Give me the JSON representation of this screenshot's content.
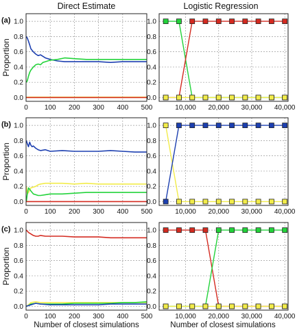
{
  "chart_data": {
    "type": "line",
    "title_left": "Direct Estimate",
    "title_right": "Logistic Regression",
    "ylabel": "Proportion",
    "xlabel_left": "Number of closest simulations",
    "xlabel_right": "Number of closest simulations",
    "colors": {
      "red": "#d42a20",
      "green": "#22d33a",
      "blue": "#1c3fb0",
      "yellow": "#f2ec4a"
    },
    "left_x_ticks": [
      "0",
      "100",
      "200",
      "300",
      "400",
      "500"
    ],
    "left_x_range": [
      0,
      500
    ],
    "right_x_ticks": [
      "10,000",
      "20,000",
      "30,000",
      "40,000"
    ],
    "right_x_range": [
      2000,
      41000
    ],
    "right_x_tick_values": [
      10000,
      20000,
      30000,
      40000
    ],
    "right_x_points": [
      4000,
      8000,
      12000,
      16000,
      20000,
      24000,
      28000,
      32000,
      36000,
      40000
    ],
    "panels": [
      {
        "label": "(a)",
        "y_ticks": [
          "0.0",
          "0.2",
          "0.4",
          "0.6",
          "0.8",
          "1.0"
        ],
        "y_range": [
          -0.05,
          1.1
        ],
        "direct": [
          {
            "color": "blue",
            "x": [
              1,
              5,
              10,
              15,
              20,
              30,
              40,
              50,
              60,
              70,
              80,
              100,
              130,
              160,
              200,
              250,
              300,
              350,
              400,
              450,
              500
            ],
            "y": [
              0.8,
              0.78,
              0.74,
              0.69,
              0.64,
              0.6,
              0.57,
              0.55,
              0.56,
              0.54,
              0.52,
              0.5,
              0.48,
              0.47,
              0.47,
              0.47,
              0.47,
              0.46,
              0.47,
              0.47,
              0.47
            ]
          },
          {
            "color": "green",
            "x": [
              1,
              5,
              10,
              15,
              20,
              30,
              40,
              50,
              60,
              70,
              80,
              100,
              130,
              160,
              200,
              250,
              300,
              350,
              400,
              450,
              500
            ],
            "y": [
              0.2,
              0.22,
              0.28,
              0.33,
              0.36,
              0.4,
              0.43,
              0.44,
              0.43,
              0.46,
              0.47,
              0.49,
              0.5,
              0.52,
              0.51,
              0.5,
              0.5,
              0.5,
              0.5,
              0.5,
              0.5
            ]
          },
          {
            "color": "yellow",
            "x": [
              0,
              500
            ],
            "y": [
              0.005,
              0.005
            ]
          },
          {
            "color": "red",
            "x": [
              0,
              500
            ],
            "y": [
              0.0,
              0.0
            ]
          }
        ],
        "logistic": [
          {
            "color": "green",
            "y": [
              1,
              1,
              0,
              0,
              0,
              0,
              0,
              0,
              0,
              0
            ]
          },
          {
            "color": "red",
            "y": [
              0,
              0,
              1,
              1,
              1,
              1,
              1,
              1,
              1,
              1
            ]
          },
          {
            "color": "yellow",
            "y": [
              0,
              0,
              0,
              0,
              0,
              0,
              0,
              0,
              0,
              0
            ]
          }
        ]
      },
      {
        "label": "(b)",
        "y_ticks": [
          "0.0",
          "0.2",
          "0.4",
          "0.6",
          "0.8",
          "1.0"
        ],
        "y_range": [
          -0.05,
          1.1
        ],
        "direct": [
          {
            "color": "blue",
            "x": [
              1,
              5,
              10,
              15,
              20,
              25,
              30,
              40,
              50,
              60,
              80,
              100,
              150,
              200,
              250,
              300,
              350,
              400,
              450,
              500
            ],
            "y": [
              0.8,
              0.76,
              0.72,
              0.78,
              0.74,
              0.72,
              0.73,
              0.7,
              0.68,
              0.67,
              0.68,
              0.66,
              0.67,
              0.66,
              0.66,
              0.66,
              0.67,
              0.66,
              0.65,
              0.65
            ]
          },
          {
            "color": "yellow",
            "x": [
              1,
              5,
              10,
              20,
              30,
              40,
              50,
              60,
              80,
              100,
              150,
              200,
              250,
              300,
              350,
              400,
              450,
              500
            ],
            "y": [
              0.2,
              0.1,
              0.12,
              0.18,
              0.19,
              0.2,
              0.22,
              0.23,
              0.24,
              0.24,
              0.24,
              0.23,
              0.24,
              0.23,
              0.23,
              0.23,
              0.23,
              0.23
            ]
          },
          {
            "color": "green",
            "x": [
              1,
              5,
              10,
              20,
              30,
              40,
              50,
              60,
              80,
              100,
              150,
              200,
              250,
              300,
              350,
              400,
              450,
              500
            ],
            "y": [
              0.0,
              0.1,
              0.18,
              0.14,
              0.1,
              0.09,
              0.08,
              0.08,
              0.09,
              0.1,
              0.1,
              0.11,
              0.12,
              0.12,
              0.12,
              0.12,
              0.12,
              0.12
            ]
          },
          {
            "color": "red",
            "x": [
              0,
              500
            ],
            "y": [
              0.0,
              0.0
            ]
          }
        ],
        "logistic": [
          {
            "color": "yellow",
            "y": [
              1,
              0,
              0,
              0,
              0,
              0,
              0,
              0,
              0,
              0
            ]
          },
          {
            "color": "blue",
            "y": [
              0,
              1,
              1,
              1,
              1,
              1,
              1,
              1,
              1,
              1
            ]
          }
        ]
      },
      {
        "label": "(c)",
        "y_ticks": [
          "0.0",
          "0.2",
          "0.4",
          "0.6",
          "0.8",
          "1.0"
        ],
        "y_range": [
          -0.05,
          1.1
        ],
        "direct": [
          {
            "color": "red",
            "x": [
              1,
              10,
              20,
              30,
              40,
              50,
              60,
              80,
              100,
              150,
              200,
              250,
              300,
              350,
              400,
              450,
              500
            ],
            "y": [
              1.0,
              0.97,
              0.95,
              0.93,
              0.92,
              0.92,
              0.93,
              0.92,
              0.92,
              0.92,
              0.91,
              0.91,
              0.91,
              0.9,
              0.9,
              0.9,
              0.9
            ]
          },
          {
            "color": "yellow",
            "x": [
              1,
              10,
              20,
              40,
              60,
              100,
              150,
              200,
              250,
              300,
              350,
              400,
              450,
              500
            ],
            "y": [
              0.0,
              0.02,
              0.05,
              0.06,
              0.05,
              0.05,
              0.05,
              0.05,
              0.05,
              0.05,
              0.05,
              0.05,
              0.05,
              0.05
            ]
          },
          {
            "color": "green",
            "x": [
              1,
              10,
              20,
              40,
              60,
              100,
              150,
              200,
              250,
              300,
              350,
              400,
              450,
              500
            ],
            "y": [
              0.0,
              0.01,
              0.03,
              0.04,
              0.03,
              0.03,
              0.03,
              0.04,
              0.04,
              0.04,
              0.04,
              0.05,
              0.05,
              0.06
            ]
          },
          {
            "color": "blue",
            "x": [
              1,
              10,
              20,
              40,
              60,
              100,
              150,
              200,
              250,
              300,
              350,
              400,
              450,
              500
            ],
            "y": [
              0.0,
              0.01,
              0.02,
              0.04,
              0.03,
              0.02,
              0.02,
              0.02,
              0.02,
              0.02,
              0.03,
              0.03,
              0.03,
              0.03
            ]
          }
        ],
        "logistic": [
          {
            "color": "red",
            "y": [
              1,
              1,
              1,
              1,
              0,
              0,
              0,
              0,
              0,
              0
            ]
          },
          {
            "color": "green",
            "y": [
              0,
              0,
              0,
              0,
              1,
              1,
              1,
              1,
              1,
              1
            ]
          },
          {
            "color": "yellow",
            "y": [
              0,
              0,
              0,
              0,
              0,
              0,
              0,
              0,
              0,
              0
            ]
          }
        ]
      }
    ]
  }
}
